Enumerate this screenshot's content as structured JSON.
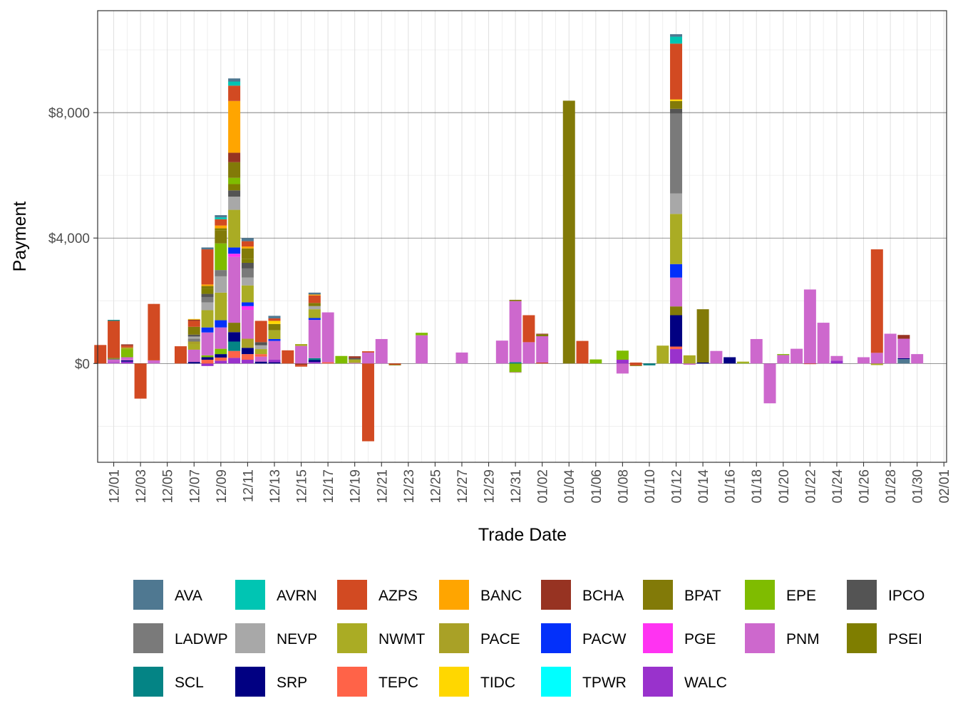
{
  "chart_data": {
    "type": "bar",
    "stacked": true,
    "xlabel": "Trade Date",
    "ylabel": "Payment",
    "ylim": [
      -3150,
      11250
    ],
    "y_ticks": [
      0,
      4000,
      8000
    ],
    "y_tick_labels": [
      "$0",
      "$4,000",
      "$8,000"
    ],
    "grid": true,
    "legend_position": "bottom",
    "x_tick_labels": [
      "12/01",
      "12/03",
      "12/05",
      "12/07",
      "12/09",
      "12/11",
      "12/13",
      "12/15",
      "12/17",
      "12/19",
      "12/21",
      "12/23",
      "12/25",
      "12/27",
      "12/29",
      "12/31",
      "01/02",
      "01/04",
      "01/06",
      "01/08",
      "01/10",
      "01/12",
      "01/14",
      "01/16",
      "01/18",
      "01/20",
      "01/22",
      "01/24",
      "01/26",
      "01/28",
      "01/30",
      "02/01"
    ],
    "x_tick_index": [
      1,
      3,
      5,
      7,
      9,
      11,
      13,
      15,
      17,
      19,
      21,
      23,
      25,
      27,
      29,
      31,
      33,
      35,
      37,
      39,
      41,
      43,
      45,
      47,
      49,
      51,
      53,
      55,
      57,
      59,
      61,
      63
    ],
    "x_index_range": [
      -0.2,
      63.2
    ],
    "series_colors": {
      "AVA": "#4f7891",
      "AVRN": "#00c5b3",
      "AZPS": "#d24a22",
      "BANC": "#ffa500",
      "BCHA": "#973322",
      "BPAT": "#827a08",
      "EPE": "#7fbc00",
      "IPCO": "#545454",
      "LADWP": "#7a7a7a",
      "NEVP": "#a8a8a8",
      "NWMT": "#aaac24",
      "PACE": "#a9a126",
      "PACW": "#0330fa",
      "PGE": "#ff33f2",
      "PNM": "#cd68cd",
      "PSEI": "#7f7e00",
      "SCL": "#048485",
      "SRP": "#010082",
      "TEPC": "#ff6348",
      "TIDC": "#ffd700",
      "TPWR": "#00ffff",
      "WALC": "#9932cc"
    },
    "legend": [
      "AVA",
      "AVRN",
      "AZPS",
      "BANC",
      "BCHA",
      "BPAT",
      "EPE",
      "IPCO",
      "LADWP",
      "NEVP",
      "NWMT",
      "PACE",
      "PACW",
      "PGE",
      "PNM",
      "PSEI",
      "SCL",
      "SRP",
      "TEPC",
      "TIDC",
      "TPWR",
      "WALC"
    ],
    "bars": [
      {
        "date": "11/30",
        "index": 0,
        "segments": [
          [
            "AZPS",
            590
          ]
        ]
      },
      {
        "date": "12/01",
        "index": 1,
        "segments": [
          [
            "PNM",
            20
          ],
          [
            "WALC",
            20
          ],
          [
            "PNM",
            80
          ],
          [
            "LADWP",
            30
          ],
          [
            "BPAT",
            30
          ],
          [
            "AZPS",
            1180
          ],
          [
            "SCL",
            30
          ]
        ]
      },
      {
        "date": "12/02",
        "index": 2,
        "segments": [
          [
            "WALC",
            60
          ],
          [
            "SRP",
            40
          ],
          [
            "PNM",
            100
          ],
          [
            "EPE",
            250
          ],
          [
            "NWMT",
            60
          ],
          [
            "AZPS",
            60
          ],
          [
            "BCHA",
            40
          ]
        ]
      },
      {
        "date": "12/03",
        "index": 3,
        "segments": [
          [
            "AZPS",
            -1120
          ]
        ]
      },
      {
        "date": "12/04",
        "index": 4,
        "segments": [
          [
            "PNM",
            100
          ],
          [
            "AZPS",
            1800
          ]
        ]
      },
      {
        "date": "12/06",
        "index": 6,
        "segments": [
          [
            "AZPS",
            550
          ]
        ]
      },
      {
        "date": "12/07",
        "index": 7,
        "segments": [
          [
            "SRP",
            50
          ],
          [
            "PNM",
            390
          ],
          [
            "NWMT",
            180
          ],
          [
            "PACE",
            80
          ],
          [
            "LADWP",
            90
          ],
          [
            "NEVP",
            70
          ],
          [
            "IPCO",
            60
          ],
          [
            "BPAT",
            250
          ],
          [
            "AZPS",
            190
          ],
          [
            "BCHA",
            40
          ],
          [
            "TIDC",
            20
          ]
        ]
      },
      {
        "date": "12/08",
        "index": 8,
        "segments": [
          [
            "WALC",
            -80
          ],
          [
            "TEPC",
            120
          ],
          [
            "SRP",
            80
          ],
          [
            "EPE",
            60
          ],
          [
            "PNM",
            730
          ],
          [
            "PACW",
            160
          ],
          [
            "NWMT",
            550
          ],
          [
            "NEVP",
            250
          ],
          [
            "LADWP",
            170
          ],
          [
            "IPCO",
            100
          ],
          [
            "PSEI",
            170
          ],
          [
            "BPAT",
            80
          ],
          [
            "BANC",
            50
          ],
          [
            "AZPS",
            1120
          ],
          [
            "AVA",
            60
          ]
        ]
      },
      {
        "date": "12/09",
        "index": 9,
        "segments": [
          [
            "WALC",
            90
          ],
          [
            "TEPC",
            100
          ],
          [
            "SRP",
            110
          ],
          [
            "EPE",
            170
          ],
          [
            "PNM",
            680
          ],
          [
            "PACW",
            230
          ],
          [
            "NWMT",
            880
          ],
          [
            "NEVP",
            520
          ],
          [
            "LADWP",
            200
          ],
          [
            "EPE",
            850
          ],
          [
            "BPAT",
            420
          ],
          [
            "PSEI",
            60
          ],
          [
            "BANC",
            90
          ],
          [
            "AZPS",
            200
          ],
          [
            "AVRN",
            60
          ],
          [
            "AVA",
            70
          ]
        ]
      },
      {
        "date": "12/10",
        "index": 10,
        "segments": [
          [
            "WALC",
            180
          ],
          [
            "TEPC",
            220
          ],
          [
            "SCL",
            300
          ],
          [
            "SRP",
            300
          ],
          [
            "BPAT",
            300
          ],
          [
            "PNM",
            2100
          ],
          [
            "PGE",
            100
          ],
          [
            "PACW",
            200
          ],
          [
            "NWMT",
            1200
          ],
          [
            "NEVP",
            420
          ],
          [
            "IPCO",
            200
          ],
          [
            "PSEI",
            200
          ],
          [
            "EPE",
            200
          ],
          [
            "BPAT",
            500
          ],
          [
            "BCHA",
            300
          ],
          [
            "BANC",
            1650
          ],
          [
            "AZPS",
            490
          ],
          [
            "AVRN",
            130
          ],
          [
            "AVA",
            100
          ]
        ]
      },
      {
        "date": "12/11",
        "index": 11,
        "segments": [
          [
            "WALC",
            120
          ],
          [
            "TEPC",
            180
          ],
          [
            "SRP",
            200
          ],
          [
            "PACE",
            290
          ],
          [
            "PNM",
            920
          ],
          [
            "PGE",
            120
          ],
          [
            "PACW",
            120
          ],
          [
            "NWMT",
            540
          ],
          [
            "NEVP",
            250
          ],
          [
            "LADWP",
            290
          ],
          [
            "IPCO",
            180
          ],
          [
            "PSEI",
            130
          ],
          [
            "BPAT",
            330
          ],
          [
            "BANC",
            60
          ],
          [
            "AZPS",
            170
          ],
          [
            "AVA",
            100
          ]
        ]
      },
      {
        "date": "12/12",
        "index": 12,
        "segments": [
          [
            "SRP",
            60
          ],
          [
            "PNM",
            160
          ],
          [
            "TEPC",
            80
          ],
          [
            "NWMT",
            160
          ],
          [
            "NEVP",
            120
          ],
          [
            "IPCO",
            100
          ],
          [
            "AZPS",
            680
          ]
        ]
      },
      {
        "date": "12/13",
        "index": 13,
        "segments": [
          [
            "SRP",
            40
          ],
          [
            "WALC",
            80
          ],
          [
            "PNM",
            600
          ],
          [
            "PACW",
            60
          ],
          [
            "NWMT",
            280
          ],
          [
            "BPAT",
            200
          ],
          [
            "TIDC",
            100
          ],
          [
            "AZPS",
            80
          ],
          [
            "AVA",
            80
          ]
        ]
      },
      {
        "date": "12/14",
        "index": 14,
        "segments": [
          [
            "AZPS",
            420
          ]
        ]
      },
      {
        "date": "12/15",
        "index": 15,
        "segments": [
          [
            "BCHA",
            -40
          ],
          [
            "AZPS",
            -60
          ],
          [
            "PNM",
            560
          ],
          [
            "NWMT",
            60
          ]
        ]
      },
      {
        "date": "12/16",
        "index": 16,
        "segments": [
          [
            "WALC",
            50
          ],
          [
            "SRP",
            60
          ],
          [
            "SCL",
            60
          ],
          [
            "PNM",
            1220
          ],
          [
            "PACW",
            60
          ],
          [
            "NWMT",
            280
          ],
          [
            "NEVP",
            100
          ],
          [
            "BPAT",
            100
          ],
          [
            "AZPS",
            240
          ],
          [
            "BANC",
            30
          ],
          [
            "AVA",
            60
          ]
        ]
      },
      {
        "date": "12/17",
        "index": 17,
        "segments": [
          [
            "TEPC",
            40
          ],
          [
            "PNM",
            1590
          ]
        ]
      },
      {
        "date": "12/18",
        "index": 18,
        "segments": [
          [
            "EPE",
            240
          ]
        ]
      },
      {
        "date": "12/19",
        "index": 19,
        "segments": [
          [
            "PNM",
            20
          ],
          [
            "NWMT",
            110
          ],
          [
            "IPCO",
            40
          ],
          [
            "BCHA",
            60
          ]
        ]
      },
      {
        "date": "12/20",
        "index": 20,
        "segments": [
          [
            "AZPS",
            -2480
          ],
          [
            "PNM",
            350
          ],
          [
            "AZPS",
            40
          ]
        ]
      },
      {
        "date": "12/21",
        "index": 21,
        "segments": [
          [
            "PNM",
            780
          ]
        ]
      },
      {
        "date": "12/22",
        "index": 22,
        "segments": [
          [
            "AZPS",
            -40
          ],
          [
            "BPAT",
            -20
          ]
        ]
      },
      {
        "date": "12/24",
        "index": 24,
        "segments": [
          [
            "PNM",
            900
          ],
          [
            "EPE",
            80
          ]
        ]
      },
      {
        "date": "12/27",
        "index": 27,
        "segments": [
          [
            "PNM",
            350
          ]
        ]
      },
      {
        "date": "12/30",
        "index": 30,
        "segments": [
          [
            "PNM",
            730
          ]
        ]
      },
      {
        "date": "12/31",
        "index": 31,
        "segments": [
          [
            "EPE",
            -280
          ],
          [
            "PNM",
            -10
          ],
          [
            "SCL",
            40
          ],
          [
            "PNM",
            1950
          ],
          [
            "BPAT",
            40
          ]
        ]
      },
      {
        "date": "01/01",
        "index": 32,
        "segments": [
          [
            "PNM",
            680
          ],
          [
            "AZPS",
            860
          ]
        ]
      },
      {
        "date": "01/02",
        "index": 33,
        "segments": [
          [
            "AZPS",
            30
          ],
          [
            "PNM",
            840
          ],
          [
            "PSEI",
            60
          ],
          [
            "BCHA",
            20
          ]
        ]
      },
      {
        "date": "01/04",
        "index": 35,
        "segments": [
          [
            "BPAT",
            8380
          ]
        ]
      },
      {
        "date": "01/05",
        "index": 36,
        "segments": [
          [
            "AZPS",
            720
          ]
        ]
      },
      {
        "date": "01/06",
        "index": 37,
        "segments": [
          [
            "EPE",
            130
          ]
        ]
      },
      {
        "date": "01/08",
        "index": 39,
        "segments": [
          [
            "PNM",
            -320
          ],
          [
            "WALC",
            120
          ],
          [
            "EPE",
            290
          ]
        ]
      },
      {
        "date": "01/09",
        "index": 40,
        "segments": [
          [
            "AZPS",
            -60
          ],
          [
            "BPAT",
            -20
          ],
          [
            "AZPS",
            30
          ]
        ]
      },
      {
        "date": "01/10",
        "index": 41,
        "segments": [
          [
            "SCL",
            -60
          ]
        ]
      },
      {
        "date": "01/11",
        "index": 42,
        "segments": [
          [
            "NWMT",
            570
          ]
        ]
      },
      {
        "date": "01/12",
        "index": 43,
        "segments": [
          [
            "WALC",
            460
          ],
          [
            "TEPC",
            80
          ],
          [
            "SRP",
            1000
          ],
          [
            "BPAT",
            280
          ],
          [
            "PNM",
            920
          ],
          [
            "PACW",
            430
          ],
          [
            "NWMT",
            1600
          ],
          [
            "NEVP",
            650
          ],
          [
            "LADWP",
            2550
          ],
          [
            "IPCO",
            150
          ],
          [
            "BPAT",
            250
          ],
          [
            "TIDC",
            50
          ],
          [
            "AZPS",
            1780
          ],
          [
            "AVRN",
            220
          ],
          [
            "AVA",
            80
          ]
        ]
      },
      {
        "date": "01/13",
        "index": 44,
        "segments": [
          [
            "PNM",
            -40
          ],
          [
            "NWMT",
            260
          ]
        ]
      },
      {
        "date": "01/14",
        "index": 45,
        "segments": [
          [
            "SRP",
            30
          ],
          [
            "BPAT",
            1700
          ]
        ]
      },
      {
        "date": "01/15",
        "index": 46,
        "segments": [
          [
            "PNM",
            400
          ]
        ]
      },
      {
        "date": "01/16",
        "index": 47,
        "segments": [
          [
            "SRP",
            200
          ]
        ]
      },
      {
        "date": "01/17",
        "index": 48,
        "segments": [
          [
            "EPE",
            20
          ],
          [
            "NWMT",
            40
          ]
        ]
      },
      {
        "date": "01/18",
        "index": 49,
        "segments": [
          [
            "PNM",
            780
          ]
        ]
      },
      {
        "date": "01/19",
        "index": 50,
        "segments": [
          [
            "PNM",
            -1270
          ]
        ]
      },
      {
        "date": "01/20",
        "index": 51,
        "segments": [
          [
            "PNM",
            270
          ],
          [
            "EPE",
            30
          ]
        ]
      },
      {
        "date": "01/21",
        "index": 52,
        "segments": [
          [
            "PNM",
            470
          ]
        ]
      },
      {
        "date": "01/22",
        "index": 53,
        "segments": [
          [
            "AZPS",
            -20
          ],
          [
            "PNM",
            2360
          ]
        ]
      },
      {
        "date": "01/23",
        "index": 54,
        "segments": [
          [
            "PNM",
            1300
          ]
        ]
      },
      {
        "date": "01/24",
        "index": 55,
        "segments": [
          [
            "WALC",
            90
          ],
          [
            "PNM",
            150
          ]
        ]
      },
      {
        "date": "01/26",
        "index": 57,
        "segments": [
          [
            "PNM",
            200
          ]
        ]
      },
      {
        "date": "01/27",
        "index": 58,
        "segments": [
          [
            "NWMT",
            -50
          ],
          [
            "PNM",
            340
          ],
          [
            "AZPS",
            3300
          ]
        ]
      },
      {
        "date": "01/28",
        "index": 59,
        "segments": [
          [
            "PNM",
            950
          ]
        ]
      },
      {
        "date": "01/29",
        "index": 60,
        "segments": [
          [
            "AVA",
            140
          ],
          [
            "SRP",
            30
          ],
          [
            "PNM",
            620
          ],
          [
            "BCHA",
            120
          ]
        ]
      },
      {
        "date": "01/30",
        "index": 61,
        "segments": [
          [
            "PNM",
            300
          ]
        ]
      }
    ]
  }
}
